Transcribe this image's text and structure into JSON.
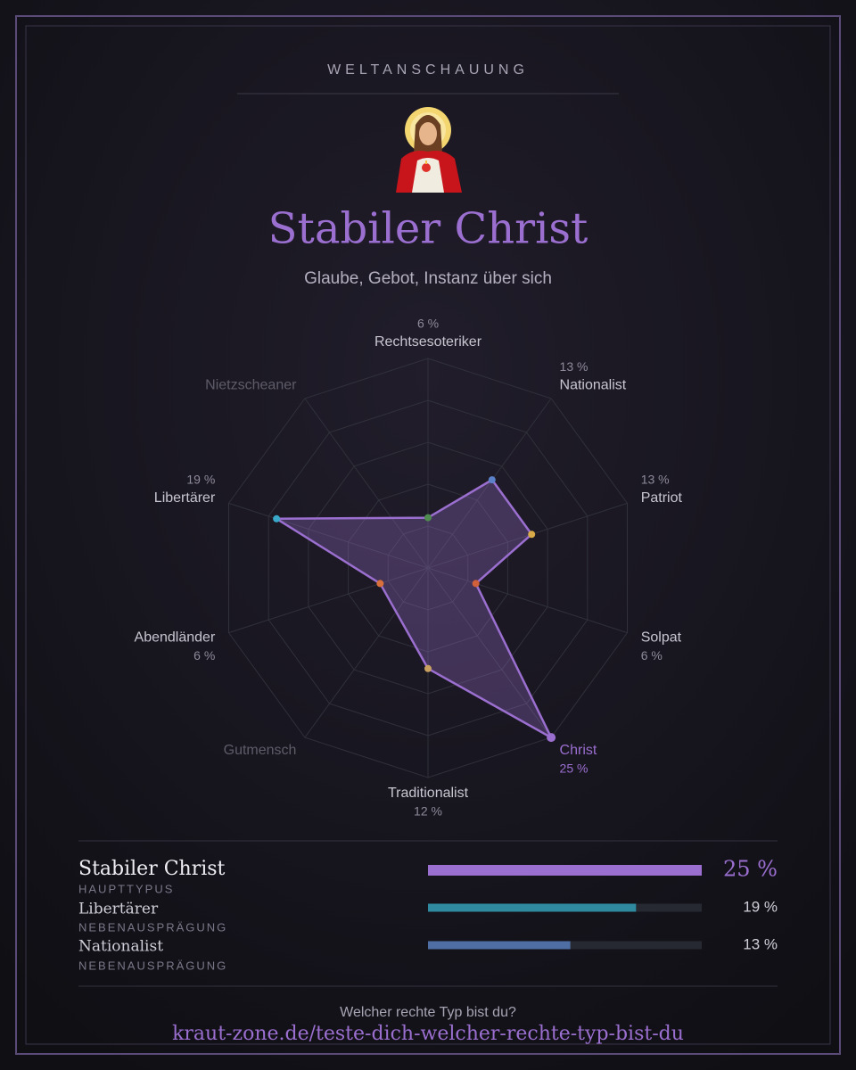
{
  "header": {
    "label": "WELTANSCHAUUNG",
    "title": "Stabiler Christ",
    "subtitle": "Glaube, Gebot, Instanz über sich"
  },
  "chart_data": [
    {
      "type": "radar",
      "categories": [
        "Rechtsesoteriker",
        "Nationalist",
        "Patriot",
        "Solpat",
        "Christ",
        "Traditionalist",
        "Gutmensch",
        "Abendländer",
        "Libertärer",
        "Nietzscheaner"
      ],
      "series": [
        {
          "color": "#9b6fd0",
          "values": [
            6,
            13,
            13,
            6,
            25,
            12,
            null,
            6,
            19,
            null
          ],
          "value_labels": [
            "6 %",
            "13 %",
            "13 %",
            "6 %",
            "25 %",
            "12 %",
            null,
            "6 %",
            "19 %",
            null
          ]
        }
      ],
      "point_colors": [
        "#4f8a4f",
        "#5b82c8",
        "#d8aa48",
        "#d0603a",
        "#9b6fd0",
        "#c8a060",
        null,
        "#d8703c",
        "#3aa8c8",
        null
      ],
      "rlim": [
        0,
        25
      ]
    },
    {
      "type": "hbar",
      "categories": [
        "Stabiler Christ",
        "Libertärer",
        "Nationalist"
      ],
      "subtitles": [
        "HAUPTTYPUS",
        "NEBENAUSPRÄGUNG",
        "NEBENAUSPRÄGUNG"
      ],
      "values": [
        25,
        19,
        13
      ],
      "value_labels": [
        "25 %",
        "19 %",
        "13 %"
      ],
      "colors": [
        "#9b6fd0",
        "#2f8aa0",
        "#4f6ea4"
      ],
      "xlim": [
        0,
        25
      ]
    }
  ],
  "footer": {
    "question": "Welcher rechte Typ bist du?",
    "link": "kraut-zone.de/teste-dich-welcher-rechte-typ-bist-du"
  }
}
